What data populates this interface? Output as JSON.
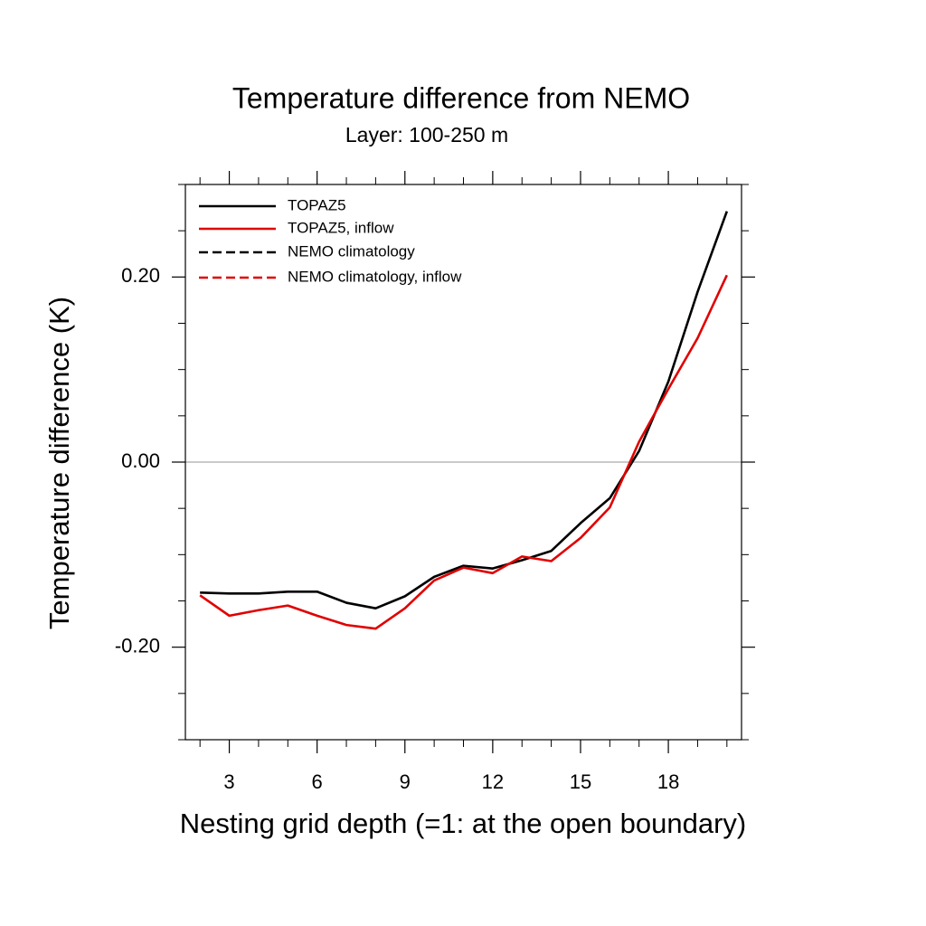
{
  "chart_data": {
    "type": "line",
    "title": "Temperature difference from NEMO",
    "subtitle": "Layer: 100-250 m",
    "x_label": "Nesting grid depth (=1: at the open boundary)",
    "y_label": "Temperature difference (K)",
    "x": [
      2,
      3,
      4,
      5,
      6,
      7,
      8,
      9,
      10,
      11,
      12,
      13,
      14,
      15,
      16,
      17,
      18,
      19,
      20
    ],
    "series": [
      {
        "name": "TOPAZ5",
        "color": "#000000",
        "dash": false,
        "values": [
          -0.141,
          -0.142,
          -0.142,
          -0.14,
          -0.14,
          -0.152,
          -0.158,
          -0.145,
          -0.124,
          -0.112,
          -0.115,
          -0.106,
          -0.096,
          -0.066,
          -0.039,
          0.012,
          0.087,
          0.184,
          0.271
        ]
      },
      {
        "name": "TOPAZ5, inflow",
        "color": "#e00000",
        "dash": false,
        "values": [
          -0.144,
          -0.166,
          -0.16,
          -0.155,
          -0.166,
          -0.176,
          -0.18,
          -0.158,
          -0.128,
          -0.114,
          -0.12,
          -0.102,
          -0.107,
          -0.082,
          -0.049,
          0.022,
          0.079,
          0.134,
          0.202
        ]
      },
      {
        "name": "NEMO climatology",
        "color": "#000000",
        "dash": true,
        "values": [
          null,
          null,
          null,
          null,
          null,
          null,
          null,
          null,
          null,
          null,
          null,
          null,
          null,
          null,
          null,
          null,
          null,
          null,
          null
        ]
      },
      {
        "name": "NEMO climatology, inflow",
        "color": "#e00000",
        "dash": true,
        "values": [
          null,
          null,
          null,
          null,
          null,
          null,
          null,
          null,
          null,
          null,
          null,
          null,
          null,
          null,
          null,
          null,
          null,
          null,
          null
        ]
      }
    ],
    "xlim": [
      1.5,
      20.5
    ],
    "xticks": [
      3,
      6,
      9,
      12,
      15,
      18
    ],
    "xminor": [
      2,
      4,
      5,
      7,
      8,
      10,
      11,
      13,
      14,
      16,
      17,
      19,
      20
    ],
    "ylim": [
      -0.3,
      0.3
    ],
    "yticks": [
      {
        "value": -0.2,
        "label": "-0.20"
      },
      {
        "value": 0,
        "label": "0.00"
      },
      {
        "value": 0.2,
        "label": "0.20"
      }
    ],
    "yminor": [
      -0.3,
      -0.25,
      -0.15,
      -0.1,
      -0.05,
      0.05,
      0.1,
      0.15,
      0.25,
      0.3
    ],
    "hline": 0,
    "legend": "top-left"
  }
}
